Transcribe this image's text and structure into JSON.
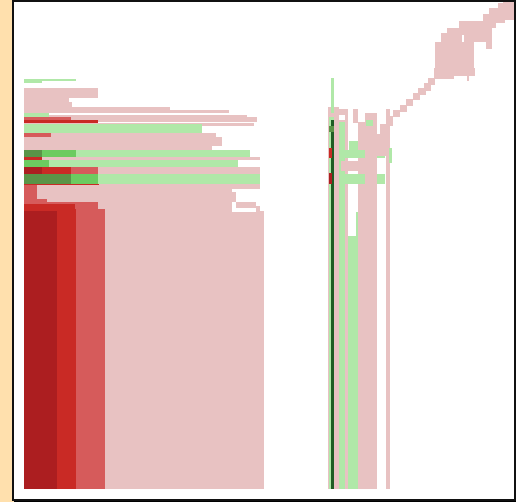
{
  "diagram": {
    "kind": "pixel-mosaic",
    "frame_color": "#111111",
    "page_background": "#FFE0AD",
    "canvas_background": "#FFFFFF"
  },
  "palette": {
    "pale_red": "#E8C2C2",
    "mid_red": "#D65B5B",
    "red": "#C92A25",
    "dark_red": "#AC1E20",
    "pale_green": "#B0E8A8",
    "green": "#6CCB60",
    "dark_green": "#5A9447",
    "very_dark_green": "#1F5D24"
  }
}
